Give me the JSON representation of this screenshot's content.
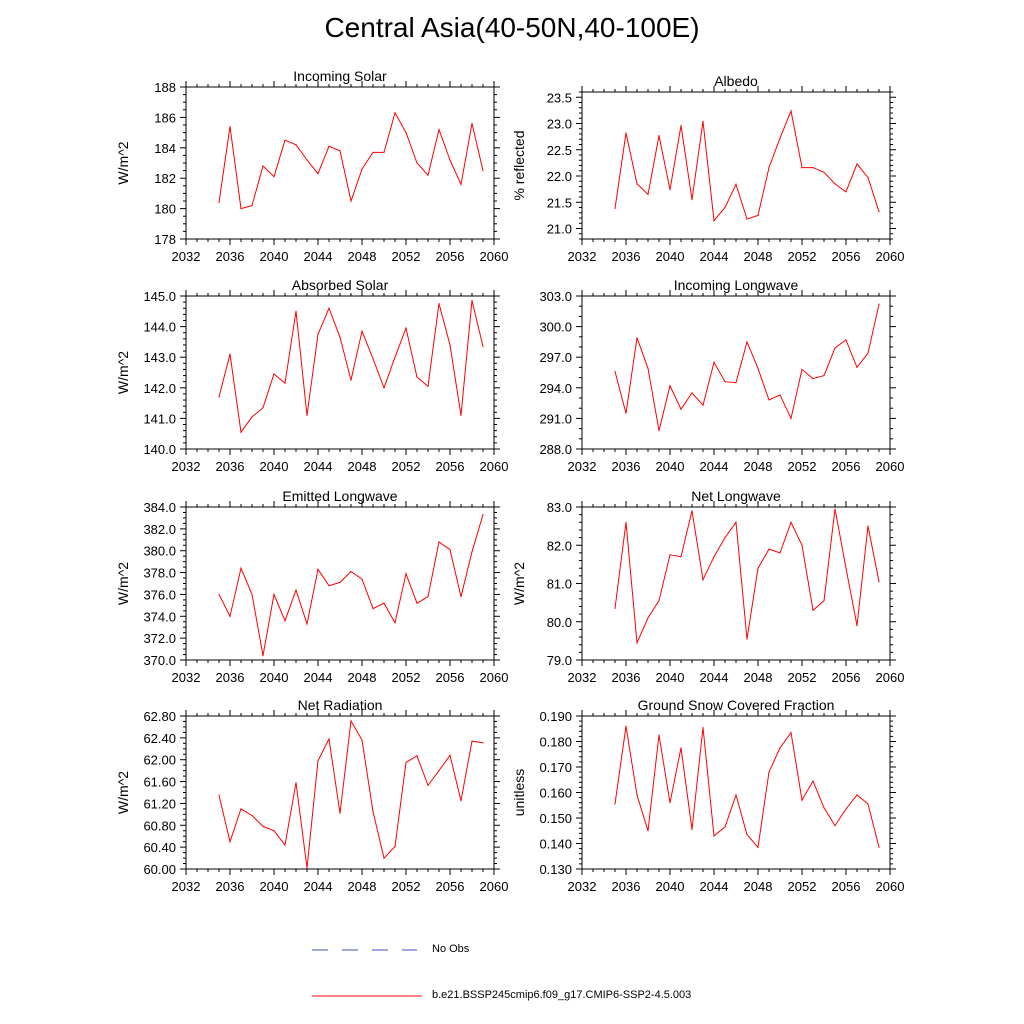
{
  "title": "Central Asia(40-50N,40-100E)",
  "colors": {
    "series": "#ff0000",
    "obs": "#3b4fbf",
    "axis": "#000000"
  },
  "legend": {
    "obs_label": "No Obs",
    "model_label": "b.e21.BSSP245cmip6.f09_g17.CMIP6-SSP2-4.5.003"
  },
  "chart_data": [
    {
      "type": "line",
      "title": "Incoming Solar",
      "xlabel": "",
      "ylabel": "W/m^2",
      "xlim": [
        2032,
        2060
      ],
      "ylim": [
        178,
        188
      ],
      "xticks": [
        2032,
        2036,
        2040,
        2044,
        2048,
        2052,
        2056,
        2060
      ],
      "yticks": [
        178,
        180,
        182,
        184,
        186,
        188
      ],
      "ydecimals": 0,
      "yminor": 4,
      "x": [
        2035,
        2036,
        2037,
        2038,
        2039,
        2040,
        2041,
        2042,
        2043,
        2044,
        2045,
        2046,
        2047,
        2048,
        2049,
        2050,
        2051,
        2052,
        2053,
        2054,
        2055,
        2056,
        2057,
        2058,
        2059
      ],
      "values": [
        180.4,
        185.4,
        180.0,
        180.2,
        182.8,
        182.1,
        184.5,
        184.2,
        183.2,
        182.3,
        184.1,
        183.8,
        180.5,
        182.6,
        183.7,
        183.7,
        186.3,
        185.0,
        183.0,
        182.2,
        185.2,
        183.2,
        181.6,
        185.6,
        182.5
      ]
    },
    {
      "type": "line",
      "title": "Albedo",
      "xlabel": "",
      "ylabel": "% reflected",
      "xlim": [
        2032,
        2060
      ],
      "ylim": [
        20.8,
        23.6
      ],
      "xticks": [
        2032,
        2036,
        2040,
        2044,
        2048,
        2052,
        2056,
        2060
      ],
      "yticks": [
        21.0,
        21.5,
        22.0,
        22.5,
        23.0,
        23.5
      ],
      "ydecimals": 1,
      "yminor": 5,
      "x": [
        2035,
        2036,
        2037,
        2038,
        2039,
        2040,
        2041,
        2042,
        2043,
        2044,
        2045,
        2046,
        2047,
        2048,
        2049,
        2050,
        2051,
        2052,
        2053,
        2054,
        2055,
        2056,
        2057,
        2058,
        2059
      ],
      "values": [
        21.38,
        22.82,
        21.85,
        21.65,
        22.77,
        21.74,
        22.96,
        21.55,
        23.04,
        21.15,
        21.4,
        21.84,
        21.18,
        21.25,
        22.16,
        22.72,
        23.24,
        22.16,
        22.16,
        22.07,
        21.85,
        21.7,
        22.23,
        21.97,
        21.32
      ]
    },
    {
      "type": "line",
      "title": "Absorbed Solar",
      "xlabel": "",
      "ylabel": "W/m^2",
      "xlim": [
        2032,
        2060
      ],
      "ylim": [
        140.0,
        145.0
      ],
      "xticks": [
        2032,
        2036,
        2040,
        2044,
        2048,
        2052,
        2056,
        2060
      ],
      "yticks": [
        140.0,
        141.0,
        142.0,
        143.0,
        144.0,
        145.0
      ],
      "ydecimals": 1,
      "yminor": 5,
      "x": [
        2035,
        2036,
        2037,
        2038,
        2039,
        2040,
        2041,
        2042,
        2043,
        2044,
        2045,
        2046,
        2047,
        2048,
        2049,
        2050,
        2051,
        2052,
        2053,
        2054,
        2055,
        2056,
        2057,
        2058,
        2059
      ],
      "values": [
        141.7,
        143.1,
        140.55,
        141.05,
        141.35,
        142.45,
        142.15,
        144.5,
        141.1,
        143.75,
        144.6,
        143.65,
        142.25,
        143.85,
        142.95,
        142.0,
        143.0,
        143.95,
        142.35,
        142.05,
        144.75,
        143.4,
        141.1,
        144.85,
        143.35
      ]
    },
    {
      "type": "line",
      "title": "Incoming Longwave",
      "xlabel": "",
      "ylabel": "",
      "xlim": [
        2032,
        2060
      ],
      "ylim": [
        288.0,
        303.0
      ],
      "xticks": [
        2032,
        2036,
        2040,
        2044,
        2048,
        2052,
        2056,
        2060
      ],
      "yticks": [
        288.0,
        291.0,
        294.0,
        297.0,
        300.0,
        303.0
      ],
      "ydecimals": 1,
      "yminor": 3,
      "x": [
        2035,
        2036,
        2037,
        2038,
        2039,
        2040,
        2041,
        2042,
        2043,
        2044,
        2045,
        2046,
        2047,
        2048,
        2049,
        2050,
        2051,
        2052,
        2053,
        2054,
        2055,
        2056,
        2057,
        2058,
        2059
      ],
      "values": [
        295.6,
        291.5,
        298.9,
        295.9,
        289.8,
        294.2,
        291.9,
        293.5,
        292.3,
        296.5,
        294.6,
        294.5,
        298.5,
        295.9,
        292.8,
        293.3,
        291.0,
        295.8,
        294.9,
        295.2,
        297.9,
        298.7,
        296.0,
        297.4,
        302.2
      ]
    },
    {
      "type": "line",
      "title": "Emitted Longwave",
      "xlabel": "",
      "ylabel": "W/m^2",
      "xlim": [
        2032,
        2060
      ],
      "ylim": [
        370.0,
        384.0
      ],
      "xticks": [
        2032,
        2036,
        2040,
        2044,
        2048,
        2052,
        2056,
        2060
      ],
      "yticks": [
        370.0,
        372.0,
        374.0,
        376.0,
        378.0,
        380.0,
        382.0,
        384.0
      ],
      "ydecimals": 1,
      "yminor": 4,
      "x": [
        2035,
        2036,
        2037,
        2038,
        2039,
        2040,
        2041,
        2042,
        2043,
        2044,
        2045,
        2046,
        2047,
        2048,
        2049,
        2050,
        2051,
        2052,
        2053,
        2054,
        2055,
        2056,
        2057,
        2058,
        2059
      ],
      "values": [
        376.0,
        374.0,
        378.4,
        376.0,
        370.4,
        376.0,
        373.6,
        376.4,
        373.3,
        378.3,
        376.8,
        377.1,
        378.1,
        377.4,
        374.7,
        375.2,
        373.4,
        377.9,
        375.2,
        375.8,
        380.8,
        380.1,
        375.8,
        379.9,
        383.3
      ]
    },
    {
      "type": "line",
      "title": "Net Longwave",
      "xlabel": "",
      "ylabel": "W/m^2",
      "xlim": [
        2032,
        2060
      ],
      "ylim": [
        79.0,
        83.0
      ],
      "xticks": [
        2032,
        2036,
        2040,
        2044,
        2048,
        2052,
        2056,
        2060
      ],
      "yticks": [
        79.0,
        80.0,
        81.0,
        82.0,
        83.0
      ],
      "ydecimals": 1,
      "yminor": 5,
      "x": [
        2035,
        2036,
        2037,
        2038,
        2039,
        2040,
        2041,
        2042,
        2043,
        2044,
        2045,
        2046,
        2047,
        2048,
        2049,
        2050,
        2051,
        2052,
        2053,
        2054,
        2055,
        2056,
        2057,
        2058,
        2059
      ],
      "values": [
        80.35,
        82.6,
        79.45,
        80.1,
        80.55,
        81.75,
        81.7,
        82.9,
        81.1,
        81.7,
        82.2,
        82.6,
        79.55,
        81.4,
        81.9,
        81.8,
        82.6,
        82.0,
        80.3,
        80.55,
        82.95,
        81.4,
        79.9,
        82.5,
        81.05
      ]
    },
    {
      "type": "line",
      "title": "Net Radiation",
      "xlabel": "",
      "ylabel": "W/m^2",
      "xlim": [
        2032,
        2060
      ],
      "ylim": [
        60.0,
        62.8
      ],
      "xticks": [
        2032,
        2036,
        2040,
        2044,
        2048,
        2052,
        2056,
        2060
      ],
      "yticks": [
        60.0,
        60.4,
        60.8,
        61.2,
        61.6,
        62.0,
        62.4,
        62.8
      ],
      "ydecimals": 2,
      "yminor": 4,
      "x": [
        2035,
        2036,
        2037,
        2038,
        2039,
        2040,
        2041,
        2042,
        2043,
        2044,
        2045,
        2046,
        2047,
        2048,
        2049,
        2050,
        2051,
        2052,
        2053,
        2054,
        2055,
        2056,
        2057,
        2058,
        2059
      ],
      "values": [
        61.35,
        60.5,
        61.1,
        60.98,
        60.78,
        60.7,
        60.44,
        61.58,
        60.02,
        61.98,
        62.38,
        61.02,
        62.71,
        62.36,
        61.05,
        60.2,
        60.41,
        61.95,
        62.07,
        61.53,
        61.8,
        62.08,
        61.25,
        62.34,
        62.31
      ]
    },
    {
      "type": "line",
      "title": "Ground Snow Covered Fraction",
      "xlabel": "",
      "ylabel": "unitless",
      "xlim": [
        2032,
        2060
      ],
      "ylim": [
        0.13,
        0.19
      ],
      "xticks": [
        2032,
        2036,
        2040,
        2044,
        2048,
        2052,
        2056,
        2060
      ],
      "yticks": [
        0.13,
        0.14,
        0.15,
        0.16,
        0.17,
        0.18,
        0.19
      ],
      "ydecimals": 3,
      "yminor": 5,
      "x": [
        2035,
        2036,
        2037,
        2038,
        2039,
        2040,
        2041,
        2042,
        2043,
        2044,
        2045,
        2046,
        2047,
        2048,
        2049,
        2050,
        2051,
        2052,
        2053,
        2054,
        2055,
        2056,
        2057,
        2058,
        2059
      ],
      "values": [
        0.1555,
        0.186,
        0.159,
        0.145,
        0.1825,
        0.156,
        0.1775,
        0.1455,
        0.1855,
        0.143,
        0.1465,
        0.159,
        0.1435,
        0.1385,
        0.168,
        0.1775,
        0.1835,
        0.157,
        0.1645,
        0.154,
        0.147,
        0.1535,
        0.159,
        0.1555,
        0.1385
      ]
    }
  ]
}
